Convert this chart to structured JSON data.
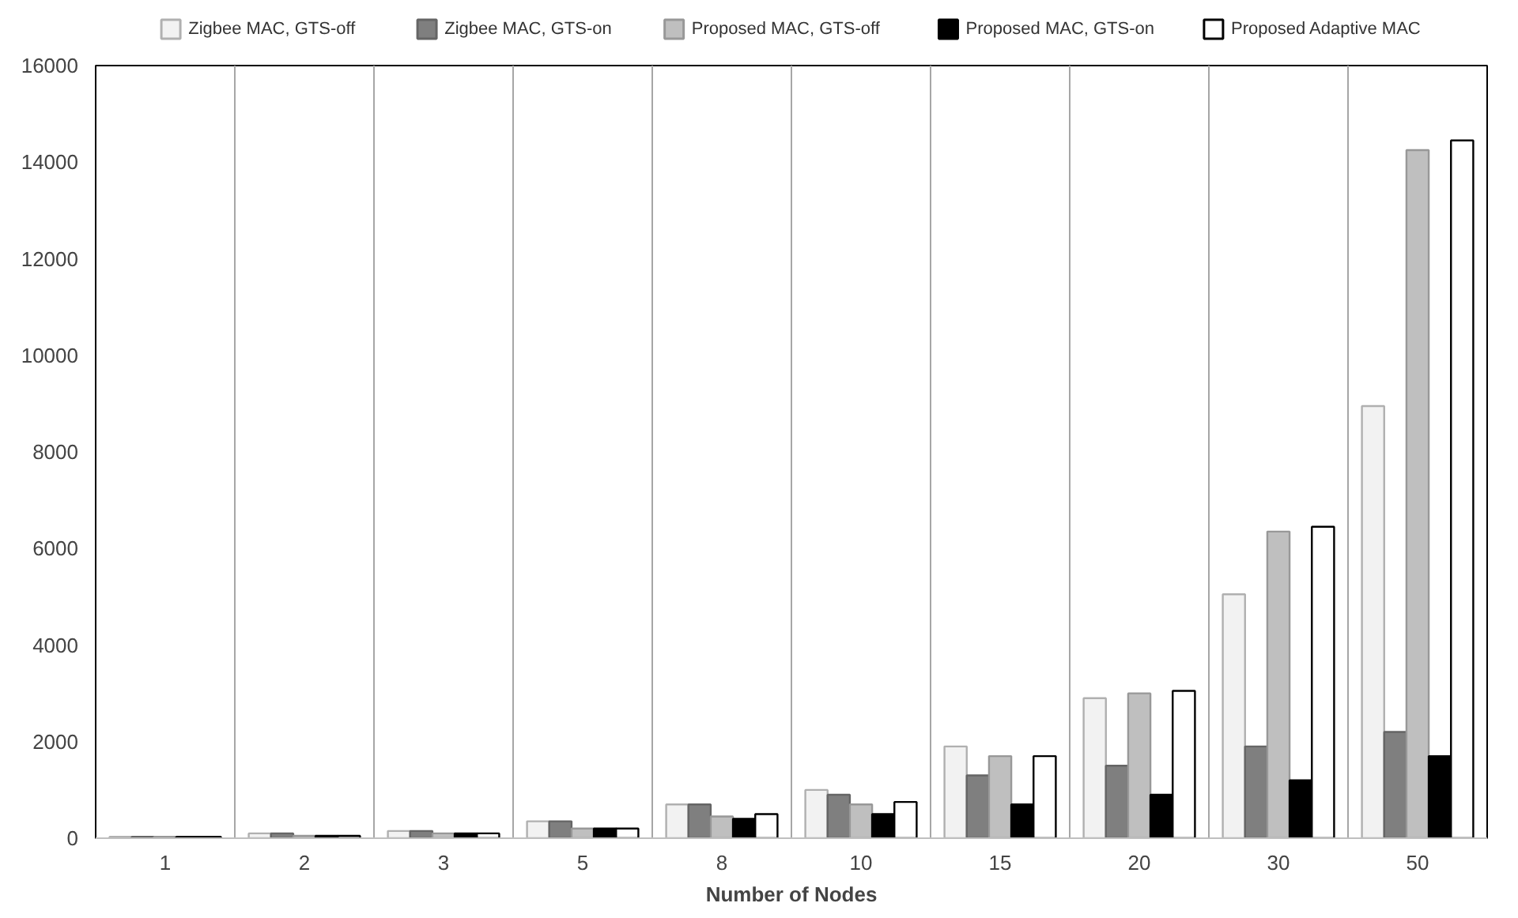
{
  "chart_data": {
    "type": "bar",
    "xlabel": "Number of Nodes",
    "categories": [
      "1",
      "2",
      "3",
      "5",
      "8",
      "10",
      "15",
      "20",
      "30",
      "50"
    ],
    "series": [
      {
        "name": "Zigbee MAC, GTS-off",
        "color": "#f2f2f2",
        "values": [
          30,
          100,
          150,
          350,
          700,
          1000,
          1900,
          2900,
          5050,
          8950
        ]
      },
      {
        "name": "Zigbee MAC, GTS-on",
        "color": "#7f7f7f",
        "values": [
          30,
          100,
          150,
          350,
          700,
          900,
          1300,
          1500,
          1900,
          2200
        ]
      },
      {
        "name": "Proposed MAC, GTS-off",
        "color": "#bfbfbf",
        "values": [
          30,
          50,
          100,
          200,
          450,
          700,
          1700,
          3000,
          6350,
          14250
        ]
      },
      {
        "name": "Proposed MAC, GTS-on",
        "color": "#000000",
        "values": [
          30,
          50,
          100,
          200,
          400,
          500,
          700,
          900,
          1200,
          1700
        ]
      },
      {
        "name": "Proposed Adaptive MAC",
        "color": "#ffffff",
        "values": [
          30,
          50,
          100,
          200,
          500,
          750,
          1700,
          3050,
          6450,
          14450
        ]
      }
    ],
    "ylim": [
      0,
      16000
    ],
    "yticks": [
      0,
      2000,
      4000,
      6000,
      8000,
      10000,
      12000,
      14000,
      16000
    ],
    "grid": "x",
    "legend": "top"
  }
}
